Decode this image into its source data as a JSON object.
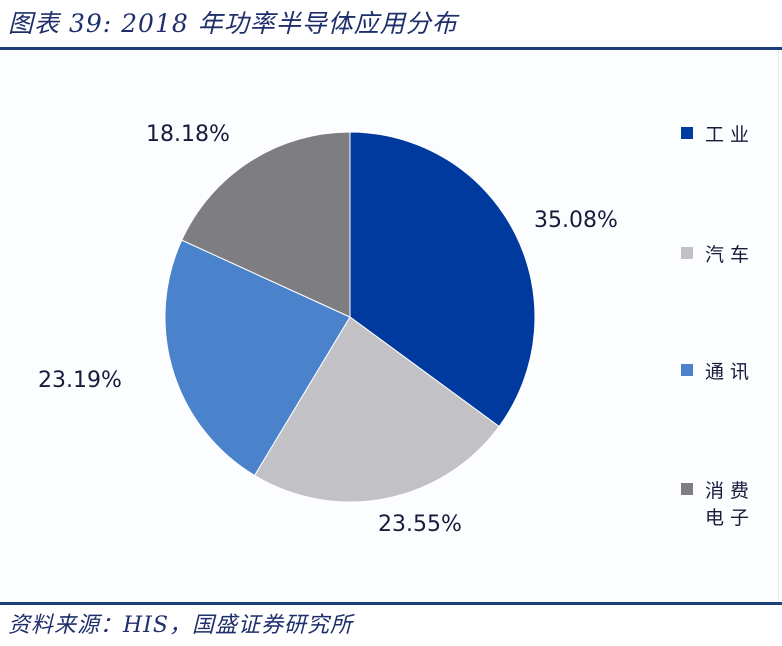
{
  "header": {
    "title": "图表 39:  2018 年功率半导体应用分布"
  },
  "footer": {
    "source": "资料来源：HIS，国盛证券研究所"
  },
  "colors": {
    "industrial": "#003a9e",
    "automotive": "#c2c2c6",
    "communication": "#4a82cc",
    "consumer": "#7e7e82",
    "rule": "#1c3f7a"
  },
  "labels": {
    "industrial": "35.08%",
    "automotive": "23.55%",
    "communication": "23.19%",
    "consumer": "18.18%"
  },
  "legend": [
    {
      "label": "工业",
      "color": "#003a9e"
    },
    {
      "label": "汽车",
      "color": "#c2c2c6"
    },
    {
      "label": "通讯",
      "color": "#4a82cc"
    },
    {
      "label": "消费电子",
      "color": "#7e7e82"
    }
  ],
  "chart_data": {
    "type": "pie",
    "title": "2018年功率半导体应用分布",
    "categories": [
      "工业",
      "汽车",
      "通讯",
      "消费电子"
    ],
    "values": [
      35.08,
      23.55,
      23.19,
      18.18
    ],
    "unit": "%",
    "start_angle": "12 o'clock, clockwise",
    "legend_position": "right",
    "source": "HIS，国盛证券研究所"
  }
}
